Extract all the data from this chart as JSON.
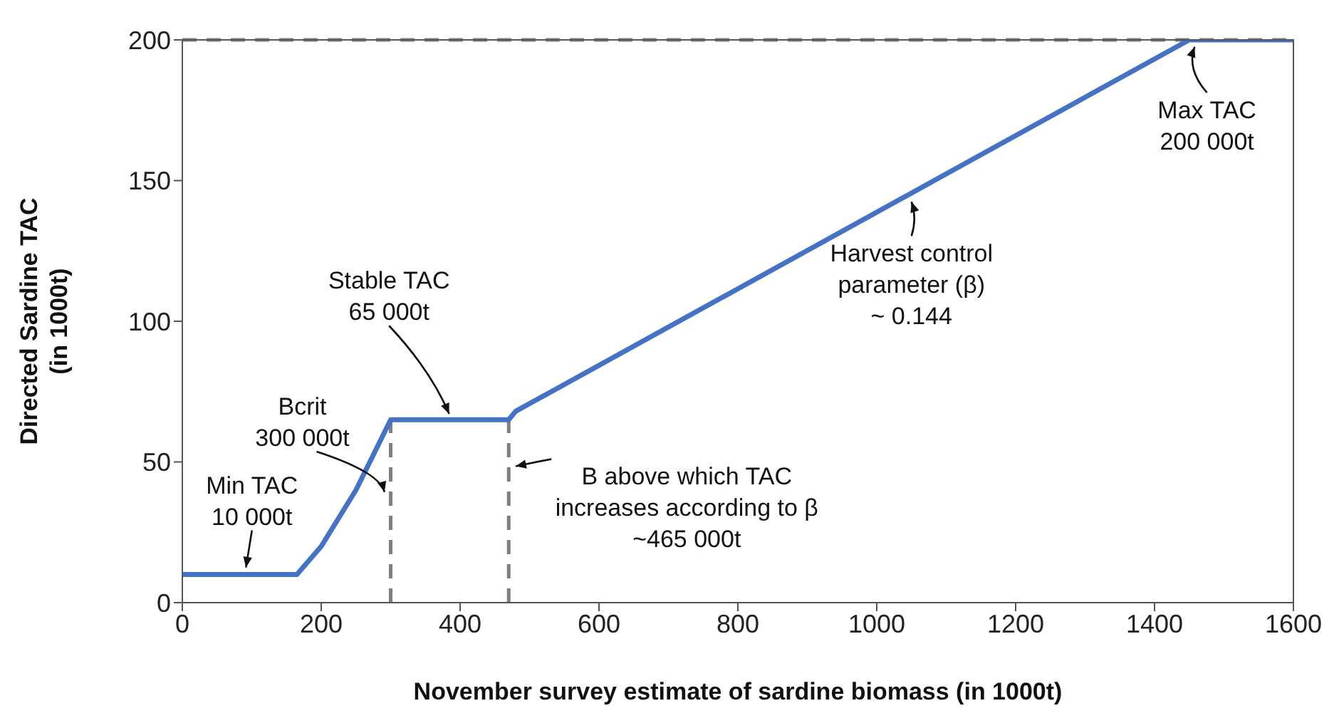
{
  "chart_data": {
    "type": "line",
    "xlabel": "November survey estimate of sardine biomass (in 1000t)",
    "ylabel": "Directed Sardine TAC\n(in 1000t)",
    "x": [
      0,
      165,
      200,
      250,
      300,
      470,
      480,
      1450,
      1600
    ],
    "series": [
      {
        "color": "#4472c4",
        "values": [
          10,
          10,
          20,
          40,
          65,
          65,
          68,
          200,
          200
        ]
      }
    ],
    "xlim": [
      0,
      1600
    ],
    "xticks": [
      0,
      200,
      400,
      600,
      800,
      1000,
      1200,
      1400,
      1600
    ],
    "ylim": [
      0,
      200
    ],
    "yticks": [
      0,
      50,
      100,
      150,
      200
    ],
    "marker": "none",
    "line_style": "solid",
    "ref_lines": [
      {
        "axis": "y",
        "value": 200,
        "color": "#7f7f7f",
        "line_style": "dashed"
      },
      {
        "axis": "x",
        "value": 300,
        "color": "#7f7f7f",
        "line_style": "dashed"
      },
      {
        "axis": "x",
        "value": 470,
        "color": "#7f7f7f",
        "line_style": "dashed"
      }
    ],
    "annotations": [
      {
        "text": "Min TAC\n10 000t",
        "x": 90,
        "y": 10
      },
      {
        "text": "Bcrit\n300 000t",
        "x": 300,
        "y": 38
      },
      {
        "text": "Stable TAC\n65 000t",
        "x": 390,
        "y": 65
      },
      {
        "text": "B above which TAC\nincreases according to β\n~465 000t",
        "x": 470,
        "y": 48
      },
      {
        "text": "Harvest control\nparameter (β)\n~ 0.144",
        "x": 1050,
        "y": 145
      },
      {
        "text": "Max TAC\n200 000t",
        "x": 1455,
        "y": 200
      }
    ]
  }
}
